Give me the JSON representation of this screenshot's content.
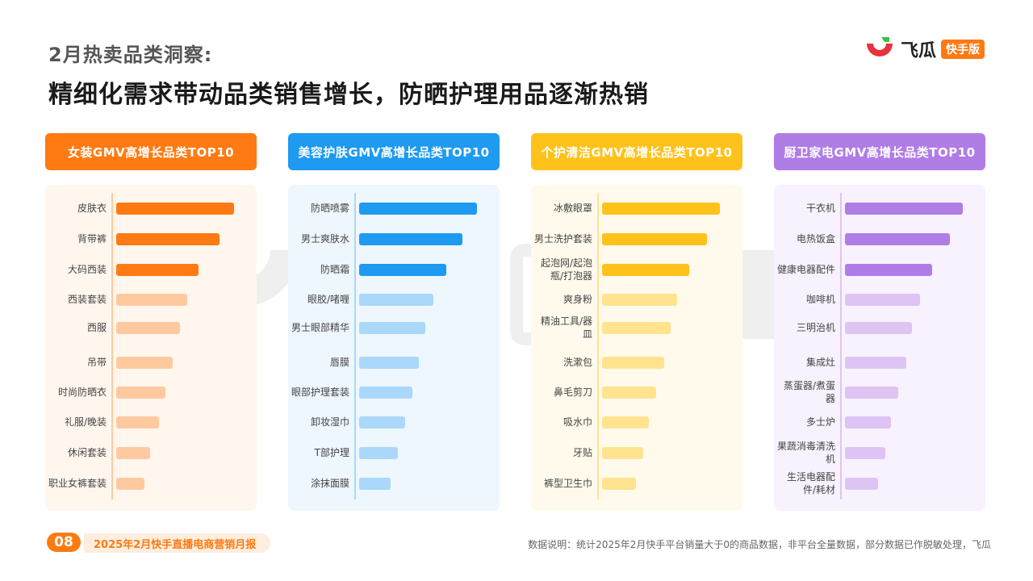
{
  "header": {
    "subtitle": "2月热卖品类洞察:",
    "headline": "精细化需求带动品类销售增长，防晒护理用品逐渐热销"
  },
  "logo": {
    "text": "飞瓜",
    "badge": "快手版",
    "icon": "feigua-logo-icon"
  },
  "footer": {
    "page_number": "08",
    "report_name": "2025年2月快手直播电商营销月报",
    "note": "数据说明：统计2025年2月快手平台销量大于0的商品数据，非平台全量数据，部分数据已作脱敏处理，飞瓜"
  },
  "chart_data": [
    {
      "type": "bar",
      "title": "女装GMV高增长品类TOP10",
      "accent": "#ff7a12",
      "light": "#ffc9a0",
      "panel_bg": "#fff6ee",
      "title_bg": "#ff7a12",
      "categories": [
        "皮肤衣",
        "背带裤",
        "大码西装",
        "西装套装",
        "西服",
        "吊带",
        "时尚防晒衣",
        "礼服/晚装",
        "休闲套装",
        "职业女裤套装"
      ],
      "values": [
        10,
        8.8,
        7,
        6,
        5.4,
        4.8,
        4.2,
        3.6,
        2.9,
        2.4
      ]
    },
    {
      "type": "bar",
      "title": "美容护肤GMV高增长品类TOP10",
      "accent": "#1e9af0",
      "light": "#a9d8fa",
      "panel_bg": "#eef6fe",
      "title_bg": "#1e9af0",
      "categories": [
        "防晒喷雾",
        "男士爽肤水",
        "防晒霜",
        "眼胶/啫喱",
        "男士眼部精华",
        "唇膜",
        "眼部护理套装",
        "卸妆湿巾",
        "T部护理",
        "涂抹面膜"
      ],
      "values": [
        10,
        8.8,
        7.4,
        6.3,
        5.6,
        5.1,
        4.5,
        3.9,
        3.3,
        2.7
      ]
    },
    {
      "type": "bar",
      "title": "个护清洁GMV高增长品类TOP10",
      "accent": "#ffc21a",
      "light": "#ffe38f",
      "panel_bg": "#fffaeb",
      "title_bg": "#ffc21a",
      "categories": [
        "冰敷眼罩",
        "男士洗护套装",
        "起泡网/起泡瓶/打泡器",
        "爽身粉",
        "精油工具/器皿",
        "洗漱包",
        "鼻毛剪刀",
        "吸水巾",
        "牙贴",
        "裤型卫生巾"
      ],
      "values": [
        10,
        8.9,
        7.4,
        6.4,
        5.8,
        5.3,
        4.6,
        4.0,
        3.5,
        2.9
      ]
    },
    {
      "type": "bar",
      "title": "厨卫家电GMV高增长品类TOP10",
      "accent": "#b07ce6",
      "light": "#ddc4f5",
      "panel_bg": "#f7f2fd",
      "title_bg": "#b07ce6",
      "categories": [
        "干衣机",
        "电热饭盒",
        "健康电器配件",
        "咖啡机",
        "三明治机",
        "集成灶",
        "蒸蛋器/煮蛋器",
        "多士炉",
        "果蔬消毒清洗机",
        "生活电器配件/耗材"
      ],
      "values": [
        10,
        8.9,
        7.4,
        6.4,
        5.7,
        5.2,
        4.5,
        3.9,
        3.4,
        2.8
      ]
    }
  ]
}
